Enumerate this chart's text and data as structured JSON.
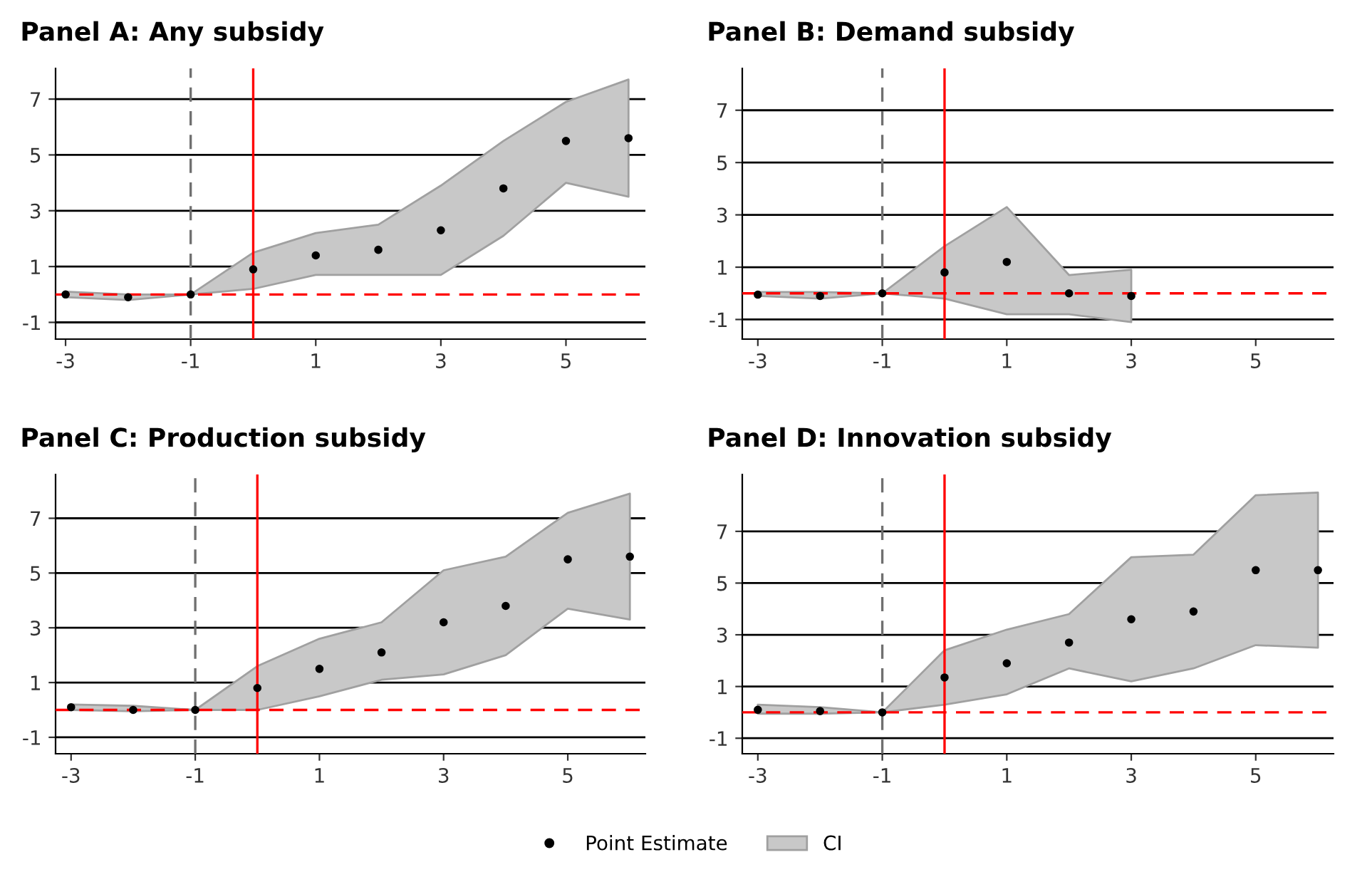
{
  "chart_data": [
    {
      "type": "scatter",
      "title": "Panel A: Any subsidy",
      "x": [
        -3,
        -2,
        -1,
        0,
        1,
        2,
        3,
        4,
        5,
        6
      ],
      "xlim": [
        -3.16,
        6.27
      ],
      "ylim": [
        -1.6,
        8.1
      ],
      "xticks": [
        -3,
        -1,
        1,
        3,
        5
      ],
      "yticks": [
        -1,
        1,
        3,
        5,
        7
      ],
      "grid": "y",
      "marker": "circle",
      "series": [
        {
          "color": "#000000",
          "values": [
            0.0,
            -0.1,
            0,
            0.9,
            1.4,
            1.6,
            2.3,
            3.8,
            5.5,
            5.6
          ],
          "lower": [
            -0.1,
            -0.2,
            0,
            0.2,
            0.7,
            0.7,
            0.7,
            2.1,
            4.0,
            3.5
          ],
          "upper": [
            0.1,
            0.0,
            0,
            1.5,
            2.2,
            2.5,
            3.9,
            5.5,
            6.9,
            7.7
          ]
        }
      ],
      "ref_lines": [
        {
          "axis": "x",
          "value": -1,
          "color": "#707070",
          "line_style": "dashed"
        },
        {
          "axis": "x",
          "value": 0,
          "color": "#ff0000",
          "line_style": "solid"
        },
        {
          "axis": "y",
          "value": 0,
          "color": "#ff0000",
          "line_style": "dashed"
        }
      ]
    },
    {
      "type": "scatter",
      "title": "Panel B: Demand subsidy",
      "x": [
        -3,
        -2,
        -1,
        0,
        1,
        2,
        3
      ],
      "xlim": [
        -3.25,
        6.25
      ],
      "ylim": [
        -1.75,
        8.6
      ],
      "xticks": [
        -3,
        -1,
        1,
        3,
        5
      ],
      "yticks": [
        -1,
        1,
        3,
        5,
        7
      ],
      "grid": "y",
      "marker": "circle",
      "series": [
        {
          "color": "#000000",
          "values": [
            -0.05,
            -0.1,
            0,
            0.8,
            1.2,
            0,
            -0.1
          ],
          "lower": [
            -0.1,
            -0.2,
            0,
            -0.2,
            -0.8,
            -0.8,
            -1.1
          ],
          "upper": [
            0.05,
            0.05,
            0,
            1.8,
            3.3,
            0.7,
            0.9
          ]
        }
      ],
      "ref_lines": [
        {
          "axis": "x",
          "value": -1,
          "color": "#707070",
          "line_style": "dashed"
        },
        {
          "axis": "x",
          "value": 0,
          "color": "#ff0000",
          "line_style": "solid"
        },
        {
          "axis": "y",
          "value": 0,
          "color": "#ff0000",
          "line_style": "dashed"
        }
      ]
    },
    {
      "type": "scatter",
      "title": "Panel C: Production subsidy",
      "x": [
        -3,
        -2,
        -1,
        0,
        1,
        2,
        3,
        4,
        5,
        6
      ],
      "xlim": [
        -3.25,
        6.25
      ],
      "ylim": [
        -1.6,
        8.6
      ],
      "xticks": [
        -3,
        -1,
        1,
        3,
        5
      ],
      "yticks": [
        -1,
        1,
        3,
        5,
        7
      ],
      "grid": "y",
      "marker": "circle",
      "series": [
        {
          "color": "#000000",
          "values": [
            0.1,
            0,
            0,
            0.8,
            1.5,
            2.1,
            3.2,
            3.8,
            5.5,
            5.6
          ],
          "lower": [
            0,
            -0.05,
            0,
            0,
            0.5,
            1.1,
            1.3,
            2.0,
            3.7,
            3.3
          ],
          "upper": [
            0.2,
            0.15,
            0,
            1.6,
            2.6,
            3.2,
            5.1,
            5.6,
            7.2,
            7.9
          ]
        }
      ],
      "ref_lines": [
        {
          "axis": "x",
          "value": -1,
          "color": "#707070",
          "line_style": "dashed"
        },
        {
          "axis": "x",
          "value": 0,
          "color": "#ff0000",
          "line_style": "solid"
        },
        {
          "axis": "y",
          "value": 0,
          "color": "#ff0000",
          "line_style": "dashed"
        }
      ]
    },
    {
      "type": "scatter",
      "title": "Panel D: Innovation subsidy",
      "x": [
        -3,
        -2,
        -1,
        0,
        1,
        2,
        3,
        4,
        5,
        6
      ],
      "xlim": [
        -3.25,
        6.25
      ],
      "ylim": [
        -1.6,
        9.2
      ],
      "xticks": [
        -3,
        -1,
        1,
        3,
        5
      ],
      "yticks": [
        -1,
        1,
        3,
        5,
        7
      ],
      "grid": "y",
      "marker": "circle",
      "legend": "bottom",
      "annotations": [
        "CI"
      ],
      "series": [
        {
          "name": "Point Estimate",
          "color": "#000000",
          "values": [
            0.1,
            0.05,
            0,
            1.35,
            1.9,
            2.7,
            3.6,
            3.9,
            5.5,
            5.5
          ],
          "lower": [
            -0.05,
            -0.05,
            0,
            0.3,
            0.7,
            1.7,
            1.2,
            1.7,
            2.6,
            2.5
          ],
          "upper": [
            0.3,
            0.2,
            0,
            2.4,
            3.2,
            3.8,
            6.0,
            6.1,
            8.4,
            8.5
          ]
        }
      ],
      "ref_lines": [
        {
          "axis": "x",
          "value": -1,
          "color": "#707070",
          "line_style": "dashed"
        },
        {
          "axis": "x",
          "value": 0,
          "color": "#ff0000",
          "line_style": "solid"
        },
        {
          "axis": "y",
          "value": 0,
          "color": "#ff0000",
          "line_style": "dashed"
        }
      ]
    }
  ]
}
